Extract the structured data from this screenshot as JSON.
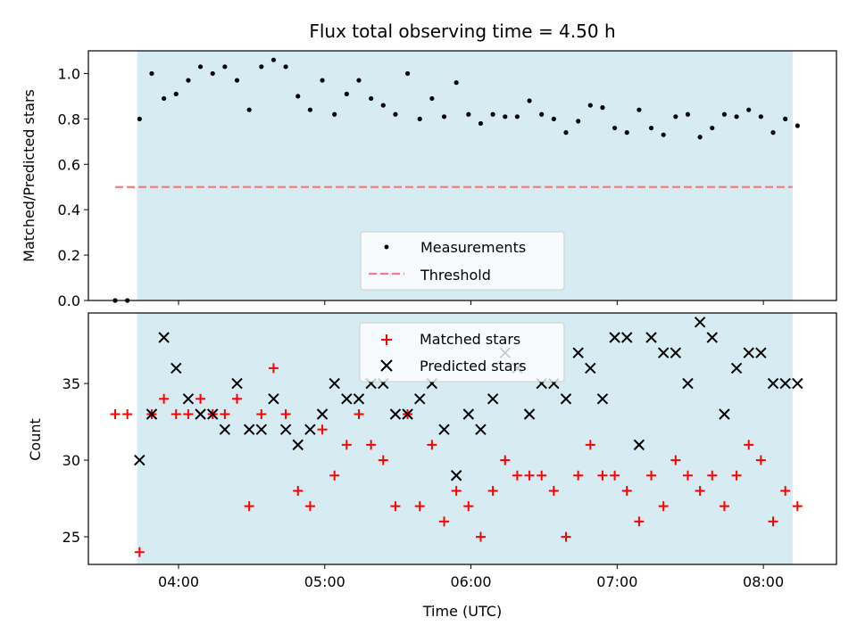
{
  "chart_data": [
    {
      "type": "scatter",
      "title": "Flux total observing time = 4.50 h",
      "xlabel": "",
      "ylabel": "Matched/Predicted stars",
      "ylim": [
        0.0,
        1.1
      ],
      "xlim": [
        "03:23",
        "08:30"
      ],
      "y_ticks": [
        0.0,
        0.2,
        0.4,
        0.6,
        0.8,
        1.0
      ],
      "y_tick_labels": [
        "0.0",
        "0.2",
        "0.4",
        "0.6",
        "0.8",
        "1.0"
      ],
      "x_ticks": [
        "04:00",
        "05:00",
        "06:00",
        "07:00",
        "08:00"
      ],
      "shaded_span": [
        "03:43",
        "08:12"
      ],
      "legend_position": "lower center",
      "series": [
        {
          "name": "Measurements",
          "marker": "dot",
          "color": "#000000",
          "x": [
            "03:34",
            "03:39",
            "03:44",
            "03:49",
            "03:54",
            "03:59",
            "04:04",
            "04:09",
            "04:14",
            "04:19",
            "04:24",
            "04:29",
            "04:34",
            "04:39",
            "04:44",
            "04:49",
            "04:54",
            "04:59",
            "05:04",
            "05:09",
            "05:14",
            "05:19",
            "05:24",
            "05:29",
            "05:34",
            "05:39",
            "05:44",
            "05:49",
            "05:54",
            "05:59",
            "06:04",
            "06:09",
            "06:14",
            "06:19",
            "06:24",
            "06:29",
            "06:34",
            "06:39",
            "06:44",
            "06:49",
            "06:54",
            "06:59",
            "07:04",
            "07:09",
            "07:14",
            "07:19",
            "07:24",
            "07:29",
            "07:34",
            "07:39",
            "07:44",
            "07:49",
            "07:54",
            "07:59",
            "08:04",
            "08:09",
            "08:14"
          ],
          "values": [
            0.0,
            0.0,
            0.8,
            1.0,
            0.89,
            0.91,
            0.97,
            1.03,
            1.0,
            1.03,
            0.97,
            0.84,
            1.03,
            1.06,
            1.03,
            0.9,
            0.84,
            0.97,
            0.82,
            0.91,
            0.97,
            0.89,
            0.86,
            0.82,
            1.0,
            0.8,
            0.89,
            0.81,
            0.96,
            0.82,
            0.78,
            0.82,
            0.81,
            0.81,
            0.88,
            0.82,
            0.8,
            0.74,
            0.79,
            0.86,
            0.85,
            0.76,
            0.74,
            0.84,
            0.76,
            0.73,
            0.81,
            0.82,
            0.72,
            0.76,
            0.82,
            0.81,
            0.84,
            0.81,
            0.74,
            0.8,
            0.77
          ]
        },
        {
          "name": "Threshold",
          "style": "dashed",
          "color": "#f08080",
          "x": [
            "03:34",
            "08:12"
          ],
          "values": [
            0.5,
            0.5
          ]
        }
      ]
    },
    {
      "type": "scatter",
      "title": "",
      "xlabel": "Time (UTC)",
      "ylabel": "Count",
      "ylim": [
        23.2,
        39.6
      ],
      "xlim": [
        "03:23",
        "08:30"
      ],
      "y_ticks": [
        25,
        30,
        35
      ],
      "y_tick_labels": [
        "25",
        "30",
        "35"
      ],
      "x_ticks": [
        "04:00",
        "05:00",
        "06:00",
        "07:00",
        "08:00"
      ],
      "x_tick_labels": [
        "04:00",
        "05:00",
        "06:00",
        "07:00",
        "08:00"
      ],
      "shaded_span": [
        "03:43",
        "08:12"
      ],
      "legend_position": "upper center",
      "series": [
        {
          "name": "Matched stars",
          "marker": "plus",
          "color": "#ff0000",
          "x": [
            "03:34",
            "03:39",
            "03:44",
            "03:49",
            "03:54",
            "03:59",
            "04:04",
            "04:09",
            "04:14",
            "04:19",
            "04:24",
            "04:29",
            "04:34",
            "04:39",
            "04:44",
            "04:49",
            "04:54",
            "04:59",
            "05:04",
            "05:09",
            "05:14",
            "05:19",
            "05:24",
            "05:29",
            "05:34",
            "05:39",
            "05:44",
            "05:49",
            "05:54",
            "05:59",
            "06:04",
            "06:09",
            "06:14",
            "06:19",
            "06:24",
            "06:29",
            "06:34",
            "06:39",
            "06:44",
            "06:49",
            "06:54",
            "06:59",
            "07:04",
            "07:09",
            "07:14",
            "07:19",
            "07:24",
            "07:29",
            "07:34",
            "07:39",
            "07:44",
            "07:49",
            "07:54",
            "07:59",
            "08:04",
            "08:09",
            "08:14"
          ],
          "values": [
            33,
            33,
            24,
            33,
            34,
            33,
            33,
            34,
            33,
            33,
            34,
            27,
            33,
            36,
            33,
            28,
            27,
            32,
            29,
            31,
            33,
            31,
            30,
            27,
            33,
            27,
            31,
            26,
            28,
            27,
            25,
            28,
            30,
            29,
            29,
            29,
            28,
            25,
            29,
            31,
            29,
            29,
            28,
            26,
            29,
            27,
            30,
            29,
            28,
            29,
            27,
            29,
            31,
            30,
            26,
            28,
            27
          ]
        },
        {
          "name": "Predicted stars",
          "marker": "x",
          "color": "#000000",
          "x": [
            "03:44",
            "03:49",
            "03:54",
            "03:59",
            "04:04",
            "04:09",
            "04:14",
            "04:19",
            "04:24",
            "04:29",
            "04:34",
            "04:39",
            "04:44",
            "04:49",
            "04:54",
            "04:59",
            "05:04",
            "05:09",
            "05:14",
            "05:19",
            "05:24",
            "05:29",
            "05:34",
            "05:39",
            "05:44",
            "05:49",
            "05:54",
            "05:59",
            "06:04",
            "06:09",
            "06:14",
            "06:19",
            "06:24",
            "06:29",
            "06:34",
            "06:39",
            "06:44",
            "06:49",
            "06:54",
            "06:59",
            "07:04",
            "07:09",
            "07:14",
            "07:19",
            "07:24",
            "07:29",
            "07:34",
            "07:39",
            "07:44",
            "07:49",
            "07:54",
            "07:59",
            "08:04",
            "08:09",
            "08:14"
          ],
          "values": [
            30,
            33,
            38,
            36,
            34,
            33,
            33,
            32,
            35,
            32,
            32,
            34,
            32,
            31,
            32,
            33,
            35,
            34,
            34,
            35,
            35,
            33,
            33,
            34,
            35,
            32,
            29,
            33,
            32,
            34,
            37,
            36,
            33,
            35,
            35,
            34,
            37,
            36,
            34,
            38,
            38,
            31,
            38,
            37,
            37,
            35,
            39,
            38,
            33,
            36,
            37,
            37,
            35,
            35,
            35
          ]
        }
      ]
    }
  ]
}
